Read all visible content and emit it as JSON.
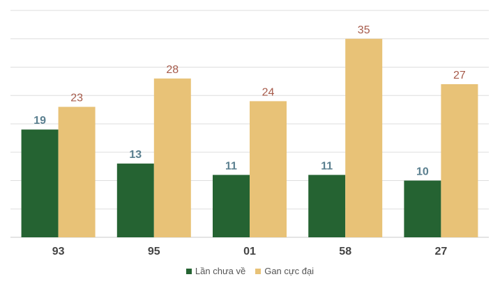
{
  "chart_data": {
    "type": "bar",
    "categories": [
      "93",
      "95",
      "01",
      "58",
      "27"
    ],
    "series": [
      {
        "name": "Lần chưa về",
        "values": [
          19,
          13,
          11,
          11,
          10
        ],
        "color": "#256332",
        "label_color": "#5a7f8f"
      },
      {
        "name": "Gan cực đại",
        "values": [
          23,
          28,
          24,
          35,
          27
        ],
        "color": "#e8c277",
        "label_color": "#a65a4a"
      }
    ],
    "ylim": [
      0,
      40
    ],
    "grid": true,
    "legend": "bottom-center",
    "gridline_color": "#dddddd",
    "axis_color": "#c8c8c8",
    "tick_label_color": "#444444"
  }
}
